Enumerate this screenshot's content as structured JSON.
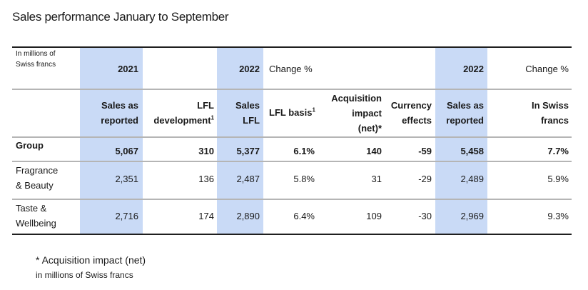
{
  "title": "Sales performance January to September",
  "table": {
    "unit_label": "In millions of Swiss francs",
    "unit_label_line1": "In millions of",
    "unit_label_line2": "Swiss francs",
    "top_header": {
      "col1": "2021",
      "col3": "2022",
      "col4": "Change %",
      "col7": "2022",
      "col8": "Change %"
    },
    "sub_header": {
      "col1": [
        "Sales as",
        "reported"
      ],
      "col2": [
        "LFL",
        "development"
      ],
      "col2_sup": "1",
      "col3": [
        "Sales",
        "LFL"
      ],
      "col4": "LFL basis",
      "col4_sup": "1",
      "col5": [
        "Acquisition",
        "impact",
        "(net)*"
      ],
      "col6": [
        "Currency",
        "effects"
      ],
      "col7": [
        "Sales as",
        "reported"
      ],
      "col8": [
        "In Swiss",
        "francs"
      ]
    },
    "rows": [
      {
        "label": [
          "Group"
        ],
        "bold": true,
        "values": [
          "5,067",
          "310",
          "5,377",
          "6.1%",
          "140",
          "-59",
          "5,458",
          "7.7%"
        ]
      },
      {
        "label": [
          "Fragrance",
          "& Beauty"
        ],
        "bold": false,
        "values": [
          "2,351",
          "136",
          "2,487",
          "5.8%",
          "31",
          "-29",
          "2,489",
          "5.9%"
        ]
      },
      {
        "label": [
          "Taste &",
          "Wellbeing"
        ],
        "bold": false,
        "values": [
          "2,716",
          "174",
          "2,890",
          "6.4%",
          "109",
          "-30",
          "2,969",
          "9.3%"
        ]
      }
    ]
  },
  "footnote": {
    "line1": "*  Acquisition impact (net)",
    "line2": "in millions of Swiss francs"
  },
  "colors": {
    "highlight": "#c9daf6",
    "rule_dark": "#1f1f1f",
    "rule_light": "#b5b5b5"
  }
}
